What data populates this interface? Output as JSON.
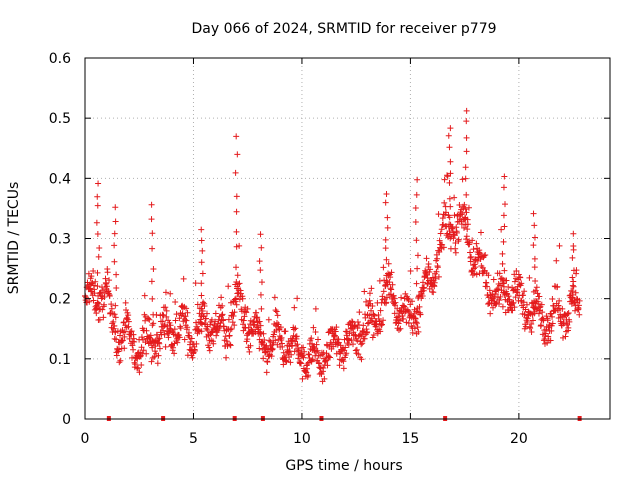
{
  "chart_data": {
    "type": "scatter",
    "title": "Day 066 of 2024, SRMTID for receiver p779",
    "xlabel": "GPS time / hours",
    "ylabel": "SRMTID / TECUs",
    "xlim": [
      0,
      24.2
    ],
    "ylim": [
      0,
      0.6
    ],
    "xticks": [
      0,
      5,
      10,
      15,
      20
    ],
    "yticks": [
      0,
      0.1,
      0.2,
      0.3,
      0.4,
      0.5,
      0.6
    ],
    "xtick_labels": [
      "0",
      "5",
      "10",
      "15",
      "20"
    ],
    "ytick_labels": [
      "0",
      "0.1",
      "0.2",
      "0.3",
      "0.4",
      "0.5",
      "0.6"
    ],
    "grid": true,
    "marker": "plus",
    "color": "#e41a1c",
    "baseline_markers_x": [
      1.1,
      3.6,
      6.9,
      8.2,
      10.9,
      16.6,
      22.8
    ],
    "trend": [
      [
        0.0,
        0.19
      ],
      [
        0.5,
        0.21
      ],
      [
        1.0,
        0.2
      ],
      [
        1.5,
        0.14
      ],
      [
        2.0,
        0.13
      ],
      [
        2.5,
        0.12
      ],
      [
        3.0,
        0.13
      ],
      [
        3.5,
        0.14
      ],
      [
        4.0,
        0.15
      ],
      [
        4.5,
        0.15
      ],
      [
        5.0,
        0.14
      ],
      [
        5.5,
        0.16
      ],
      [
        6.0,
        0.15
      ],
      [
        6.5,
        0.14
      ],
      [
        7.0,
        0.2
      ],
      [
        7.5,
        0.16
      ],
      [
        8.0,
        0.13
      ],
      [
        8.5,
        0.12
      ],
      [
        9.0,
        0.13
      ],
      [
        9.5,
        0.12
      ],
      [
        10.0,
        0.11
      ],
      [
        10.5,
        0.1
      ],
      [
        11.0,
        0.1
      ],
      [
        11.5,
        0.12
      ],
      [
        12.0,
        0.13
      ],
      [
        12.5,
        0.14
      ],
      [
        13.0,
        0.15
      ],
      [
        13.5,
        0.17
      ],
      [
        14.0,
        0.22
      ],
      [
        14.5,
        0.18
      ],
      [
        15.0,
        0.16
      ],
      [
        15.5,
        0.2
      ],
      [
        16.0,
        0.24
      ],
      [
        16.5,
        0.3
      ],
      [
        17.0,
        0.33
      ],
      [
        17.5,
        0.32
      ],
      [
        18.0,
        0.27
      ],
      [
        18.5,
        0.22
      ],
      [
        19.0,
        0.2
      ],
      [
        19.5,
        0.22
      ],
      [
        20.0,
        0.2
      ],
      [
        20.5,
        0.18
      ],
      [
        21.0,
        0.17
      ],
      [
        21.5,
        0.17
      ],
      [
        22.0,
        0.18
      ],
      [
        22.5,
        0.19
      ],
      [
        22.8,
        0.17
      ]
    ],
    "peaks": [
      [
        0.6,
        0.4
      ],
      [
        1.4,
        0.36
      ],
      [
        3.1,
        0.36
      ],
      [
        5.4,
        0.32
      ],
      [
        7.0,
        0.47
      ],
      [
        8.1,
        0.31
      ],
      [
        13.9,
        0.38
      ],
      [
        15.3,
        0.4
      ],
      [
        16.8,
        0.49
      ],
      [
        17.6,
        0.52
      ],
      [
        19.3,
        0.41
      ],
      [
        20.7,
        0.35
      ],
      [
        22.5,
        0.31
      ]
    ]
  }
}
